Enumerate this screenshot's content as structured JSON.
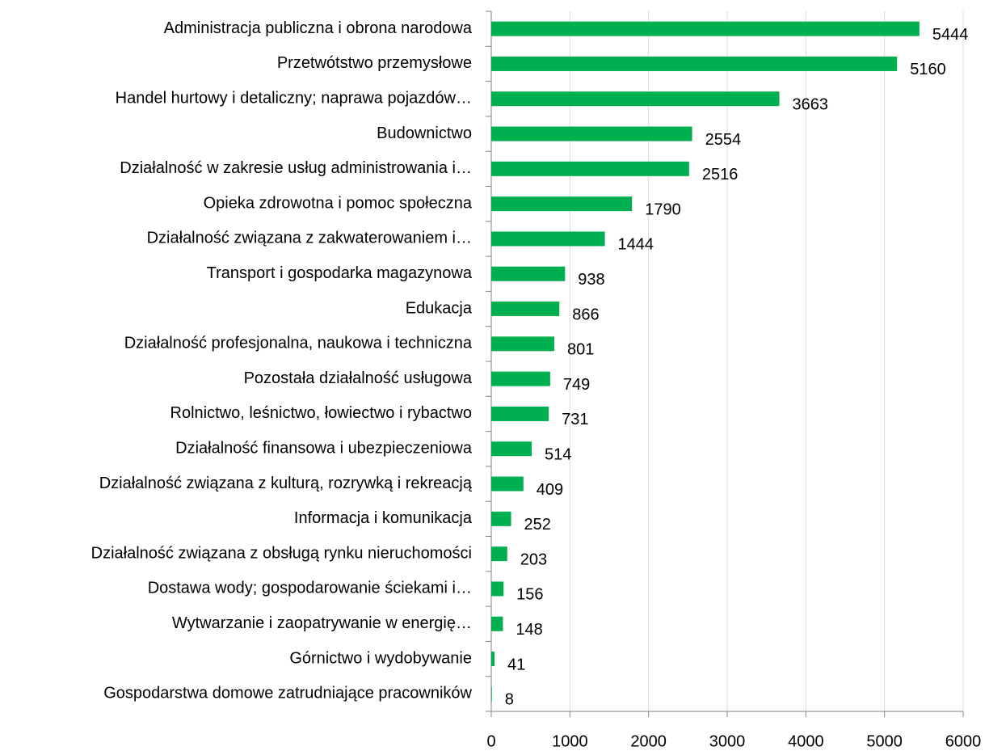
{
  "chart_data": {
    "type": "bar",
    "orientation": "horizontal",
    "categories": [
      "Administracja publiczna i obrona narodowa",
      "Przetwótstwo przemysłowe",
      "Handel hurtowy i detaliczny; naprawa pojazdów…",
      "Budownictwo",
      "Działalność w zakresie usług administrowania i…",
      "Opieka zdrowotna i pomoc społeczna",
      "Działalność związana z zakwaterowaniem i…",
      "Transport i gospodarka magazynowa",
      "Edukacja",
      "Działalność profesjonalna, naukowa i techniczna",
      "Pozostała działalność usługowa",
      "Rolnictwo, leśnictwo, łowiectwo i rybactwo",
      "Działalność finansowa i ubezpieczeniowa",
      "Działalność związana z kulturą, rozrywką i rekreacją",
      "Informacja i komunikacja",
      "Działalność związana z obsługą rynku nieruchomości",
      "Dostawa wody; gospodarowanie ściekami i…",
      "Wytwarzanie i zaopatrywanie w energię…",
      "Górnictwo i wydobywanie",
      "Gospodarstwa domowe zatrudniające pracowników"
    ],
    "values": [
      5444,
      5160,
      3663,
      2554,
      2516,
      1790,
      1444,
      938,
      866,
      801,
      749,
      731,
      514,
      409,
      252,
      203,
      156,
      148,
      41,
      8
    ],
    "color": "#00b050",
    "xlim": [
      0,
      6000
    ],
    "xticks": [
      0,
      1000,
      2000,
      3000,
      4000,
      5000,
      6000
    ],
    "grid": true
  }
}
